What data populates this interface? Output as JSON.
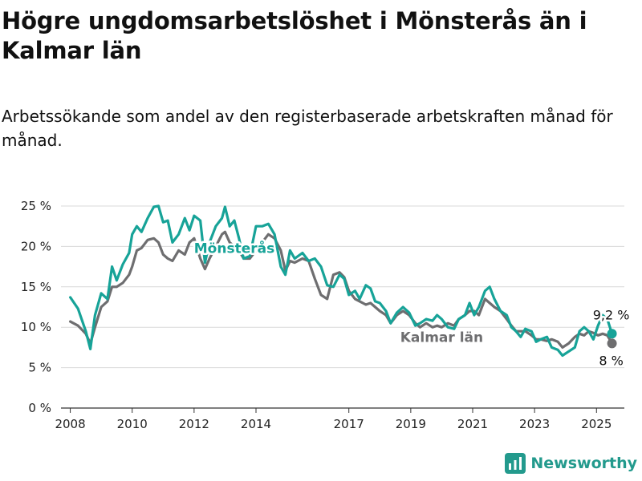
{
  "title": "Högre ungdomsarbetslöshet i Mönsterås än i Kalmar län",
  "subtitle": "Arbetssökande som andel av den registerbaserade arbetskraften månad för månad.",
  "brand": {
    "name": "Newsworthy"
  },
  "colors": {
    "primary": "#17a398",
    "secondary": "#6e6e70",
    "grid": "#d9d9d9",
    "axis": "#333333",
    "brand": "#239a8d"
  },
  "chart_data": {
    "type": "line",
    "title": "",
    "xlabel": "",
    "ylabel": "",
    "ylim": [
      0,
      25
    ],
    "yticks": [
      0,
      5,
      10,
      15,
      20,
      25
    ],
    "ytick_labels": [
      "0 %",
      "5 %",
      "10 %",
      "15 %",
      "20 %",
      "25 %"
    ],
    "xticks": [
      2008,
      2010,
      2012,
      2014,
      2017,
      2019,
      2021,
      2023,
      2025
    ],
    "xlim": [
      2007.7,
      2025.9
    ],
    "grid": true,
    "series": [
      {
        "name": "Mönsterås",
        "label_text": "Mönsterås",
        "end_label": "9,2 %",
        "points": [
          [
            2008.0,
            13.7
          ],
          [
            2008.25,
            12.3
          ],
          [
            2008.5,
            9.5
          ],
          [
            2008.65,
            7.3
          ],
          [
            2008.8,
            11.5
          ],
          [
            2009.0,
            14.2
          ],
          [
            2009.2,
            13.5
          ],
          [
            2009.35,
            17.5
          ],
          [
            2009.5,
            15.8
          ],
          [
            2009.7,
            17.8
          ],
          [
            2009.9,
            19.2
          ],
          [
            2010.0,
            21.5
          ],
          [
            2010.15,
            22.5
          ],
          [
            2010.3,
            21.8
          ],
          [
            2010.5,
            23.5
          ],
          [
            2010.7,
            24.9
          ],
          [
            2010.85,
            25.0
          ],
          [
            2011.0,
            23.0
          ],
          [
            2011.15,
            23.2
          ],
          [
            2011.3,
            20.5
          ],
          [
            2011.5,
            21.5
          ],
          [
            2011.7,
            23.5
          ],
          [
            2011.85,
            22.0
          ],
          [
            2012.0,
            23.8
          ],
          [
            2012.2,
            23.2
          ],
          [
            2012.35,
            18.0
          ],
          [
            2012.5,
            20.5
          ],
          [
            2012.7,
            22.5
          ],
          [
            2012.9,
            23.5
          ],
          [
            2013.0,
            24.9
          ],
          [
            2013.15,
            22.5
          ],
          [
            2013.3,
            23.2
          ],
          [
            2013.45,
            21.0
          ],
          [
            2013.6,
            18.5
          ],
          [
            2013.8,
            18.8
          ],
          [
            2014.0,
            22.5
          ],
          [
            2014.2,
            22.5
          ],
          [
            2014.4,
            22.8
          ],
          [
            2014.6,
            21.5
          ],
          [
            2014.8,
            17.5
          ],
          [
            2014.95,
            16.5
          ],
          [
            2015.1,
            19.5
          ],
          [
            2015.25,
            18.5
          ],
          [
            2015.5,
            19.2
          ],
          [
            2015.7,
            18.2
          ],
          [
            2015.9,
            18.5
          ],
          [
            2016.1,
            17.5
          ],
          [
            2016.3,
            15.2
          ],
          [
            2016.5,
            15.0
          ],
          [
            2016.7,
            16.5
          ],
          [
            2016.85,
            16.0
          ],
          [
            2017.0,
            14.0
          ],
          [
            2017.2,
            14.5
          ],
          [
            2017.35,
            13.5
          ],
          [
            2017.55,
            15.2
          ],
          [
            2017.7,
            14.8
          ],
          [
            2017.85,
            13.2
          ],
          [
            2018.0,
            13.0
          ],
          [
            2018.2,
            12.0
          ],
          [
            2018.35,
            10.5
          ],
          [
            2018.55,
            11.8
          ],
          [
            2018.75,
            12.5
          ],
          [
            2018.95,
            11.8
          ],
          [
            2019.15,
            10.2
          ],
          [
            2019.3,
            10.5
          ],
          [
            2019.5,
            11.0
          ],
          [
            2019.7,
            10.8
          ],
          [
            2019.85,
            11.5
          ],
          [
            2020.0,
            11.0
          ],
          [
            2020.2,
            10.0
          ],
          [
            2020.4,
            9.8
          ],
          [
            2020.55,
            11.0
          ],
          [
            2020.75,
            11.5
          ],
          [
            2020.9,
            13.0
          ],
          [
            2021.05,
            11.5
          ],
          [
            2021.2,
            12.5
          ],
          [
            2021.4,
            14.5
          ],
          [
            2021.55,
            15.0
          ],
          [
            2021.7,
            13.5
          ],
          [
            2021.9,
            12.0
          ],
          [
            2022.1,
            11.5
          ],
          [
            2022.25,
            10.0
          ],
          [
            2022.4,
            9.5
          ],
          [
            2022.55,
            8.8
          ],
          [
            2022.7,
            9.8
          ],
          [
            2022.9,
            9.5
          ],
          [
            2023.05,
            8.2
          ],
          [
            2023.2,
            8.5
          ],
          [
            2023.4,
            8.8
          ],
          [
            2023.55,
            7.5
          ],
          [
            2023.75,
            7.2
          ],
          [
            2023.9,
            6.5
          ],
          [
            2024.1,
            7.0
          ],
          [
            2024.3,
            7.5
          ],
          [
            2024.45,
            9.5
          ],
          [
            2024.6,
            10.0
          ],
          [
            2024.75,
            9.5
          ],
          [
            2024.9,
            8.5
          ],
          [
            2025.05,
            10.2
          ],
          [
            2025.2,
            11.5
          ],
          [
            2025.35,
            11.0
          ],
          [
            2025.5,
            9.2
          ]
        ]
      },
      {
        "name": "Kalmar län",
        "label_text": "Kalmar län",
        "end_label": "8 %",
        "points": [
          [
            2008.0,
            10.7
          ],
          [
            2008.25,
            10.2
          ],
          [
            2008.5,
            9.2
          ],
          [
            2008.65,
            8.0
          ],
          [
            2008.8,
            10.0
          ],
          [
            2009.0,
            12.5
          ],
          [
            2009.2,
            13.2
          ],
          [
            2009.35,
            15.0
          ],
          [
            2009.5,
            15.0
          ],
          [
            2009.7,
            15.5
          ],
          [
            2009.9,
            16.5
          ],
          [
            2010.0,
            17.5
          ],
          [
            2010.15,
            19.5
          ],
          [
            2010.3,
            19.8
          ],
          [
            2010.5,
            20.8
          ],
          [
            2010.7,
            21.0
          ],
          [
            2010.85,
            20.5
          ],
          [
            2011.0,
            19.0
          ],
          [
            2011.15,
            18.5
          ],
          [
            2011.3,
            18.2
          ],
          [
            2011.5,
            19.5
          ],
          [
            2011.7,
            19.0
          ],
          [
            2011.85,
            20.5
          ],
          [
            2012.0,
            21.0
          ],
          [
            2012.2,
            18.5
          ],
          [
            2012.35,
            17.2
          ],
          [
            2012.5,
            18.5
          ],
          [
            2012.7,
            20.0
          ],
          [
            2012.9,
            21.5
          ],
          [
            2013.0,
            21.8
          ],
          [
            2013.15,
            20.5
          ],
          [
            2013.3,
            20.0
          ],
          [
            2013.45,
            19.5
          ],
          [
            2013.6,
            18.5
          ],
          [
            2013.8,
            18.5
          ],
          [
            2014.0,
            19.5
          ],
          [
            2014.2,
            20.5
          ],
          [
            2014.4,
            21.5
          ],
          [
            2014.6,
            21.0
          ],
          [
            2014.8,
            19.5
          ],
          [
            2014.95,
            17.0
          ],
          [
            2015.1,
            18.2
          ],
          [
            2015.25,
            18.0
          ],
          [
            2015.5,
            18.5
          ],
          [
            2015.7,
            18.2
          ],
          [
            2015.9,
            16.0
          ],
          [
            2016.1,
            14.0
          ],
          [
            2016.3,
            13.5
          ],
          [
            2016.5,
            16.5
          ],
          [
            2016.7,
            16.8
          ],
          [
            2016.85,
            16.2
          ],
          [
            2017.0,
            14.5
          ],
          [
            2017.2,
            13.5
          ],
          [
            2017.35,
            13.2
          ],
          [
            2017.55,
            12.8
          ],
          [
            2017.7,
            13.0
          ],
          [
            2017.85,
            12.5
          ],
          [
            2018.0,
            12.0
          ],
          [
            2018.2,
            11.5
          ],
          [
            2018.35,
            10.5
          ],
          [
            2018.55,
            11.5
          ],
          [
            2018.75,
            12.0
          ],
          [
            2018.95,
            11.5
          ],
          [
            2019.15,
            10.5
          ],
          [
            2019.3,
            10.0
          ],
          [
            2019.5,
            10.5
          ],
          [
            2019.7,
            10.0
          ],
          [
            2019.85,
            10.2
          ],
          [
            2020.0,
            10.0
          ],
          [
            2020.2,
            10.5
          ],
          [
            2020.4,
            10.2
          ],
          [
            2020.55,
            11.0
          ],
          [
            2020.75,
            11.5
          ],
          [
            2020.9,
            12.0
          ],
          [
            2021.05,
            12.0
          ],
          [
            2021.2,
            11.5
          ],
          [
            2021.4,
            13.5
          ],
          [
            2021.55,
            13.0
          ],
          [
            2021.7,
            12.5
          ],
          [
            2021.9,
            12.0
          ],
          [
            2022.1,
            11.0
          ],
          [
            2022.25,
            10.2
          ],
          [
            2022.4,
            9.5
          ],
          [
            2022.55,
            9.5
          ],
          [
            2022.7,
            9.5
          ],
          [
            2022.9,
            9.0
          ],
          [
            2023.05,
            8.5
          ],
          [
            2023.2,
            8.5
          ],
          [
            2023.4,
            8.3
          ],
          [
            2023.55,
            8.5
          ],
          [
            2023.75,
            8.2
          ],
          [
            2023.9,
            7.5
          ],
          [
            2024.1,
            8.0
          ],
          [
            2024.3,
            8.8
          ],
          [
            2024.45,
            9.2
          ],
          [
            2024.6,
            9.0
          ],
          [
            2024.75,
            9.5
          ],
          [
            2024.9,
            9.3
          ],
          [
            2025.05,
            9.0
          ],
          [
            2025.2,
            9.2
          ],
          [
            2025.35,
            9.0
          ],
          [
            2025.5,
            8.0
          ]
        ]
      }
    ]
  }
}
